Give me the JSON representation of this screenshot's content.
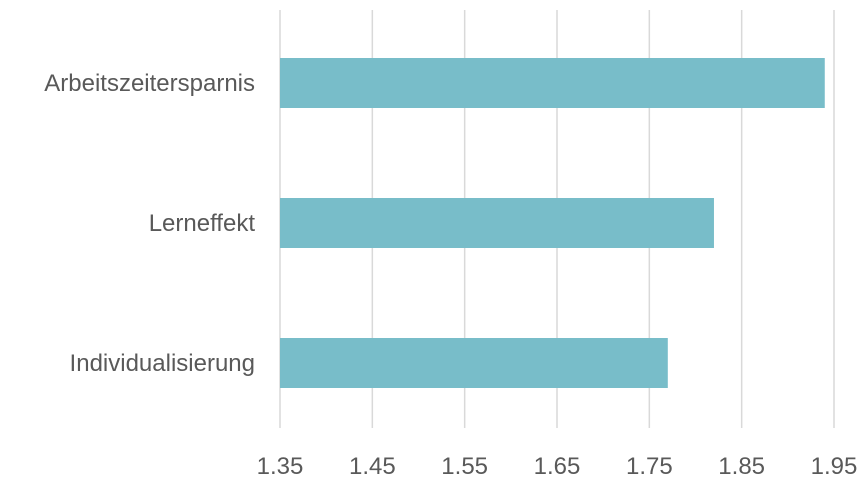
{
  "chart_data": {
    "type": "bar",
    "orientation": "horizontal",
    "title": "",
    "xlabel": "",
    "ylabel": "",
    "categories": [
      "Arbeitszeitersparnis",
      "Lerneffekt",
      "Individualisierung"
    ],
    "values": [
      1.94,
      1.82,
      1.77
    ],
    "xlim": [
      1.35,
      1.95
    ],
    "x_ticks": [
      "1.35",
      "1.45",
      "1.55",
      "1.65",
      "1.75",
      "1.85",
      "1.95"
    ],
    "grid": "vertical",
    "legend": "none",
    "bar_color": "#78bdc9"
  }
}
